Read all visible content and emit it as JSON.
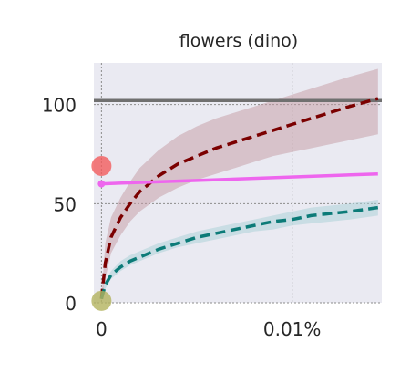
{
  "chart_data": {
    "type": "line",
    "title": "flowers (dino)",
    "xlabel": "",
    "ylabel": "",
    "x_ticks": [
      {
        "value": 0,
        "label": "0"
      },
      {
        "value": 0.01,
        "label": "0.01%"
      }
    ],
    "y_ticks": [
      {
        "value": 0,
        "label": "0"
      },
      {
        "value": 50,
        "label": "50"
      },
      {
        "value": 100,
        "label": "100"
      }
    ],
    "xlim": [
      -0.0004,
      0.0147
    ],
    "ylim": [
      0,
      121
    ],
    "grid": true,
    "colors": {
      "background": "#eaeaf2",
      "grid": "#8c8c8c",
      "reference": "#707070",
      "red": "#7b0000",
      "red_band": "#c49aa2",
      "teal": "#0c7b78",
      "teal_band": "#a8cfd6",
      "magenta": "#ee66ee",
      "red_point": "#f25c5c",
      "olive_point": "#b3b35e"
    },
    "reference_line": {
      "y": 102
    },
    "series": [
      {
        "color_key": "red",
        "style": "dashed",
        "x": [
          0,
          0.0002,
          0.0005,
          0.001,
          0.0015,
          0.002,
          0.003,
          0.004,
          0.005,
          0.006,
          0.007,
          0.008,
          0.009,
          0.01,
          0.011,
          0.012,
          0.013,
          0.0145
        ],
        "y": [
          2,
          20,
          33,
          43,
          50,
          56,
          64,
          70,
          74,
          78,
          81,
          84,
          87,
          90,
          93,
          96,
          99,
          103
        ],
        "band_low": [
          1,
          12,
          25,
          34,
          41,
          46,
          53,
          58,
          62,
          65,
          68,
          71,
          74,
          76,
          78,
          80,
          82,
          85
        ],
        "band_high": [
          3,
          30,
          43,
          53,
          61,
          68,
          77,
          84,
          89,
          93,
          96,
          99,
          102,
          105,
          108,
          111,
          114,
          118
        ]
      },
      {
        "color_key": "teal",
        "style": "dashed",
        "x": [
          0,
          0.0002,
          0.0005,
          0.001,
          0.0015,
          0.002,
          0.003,
          0.004,
          0.005,
          0.006,
          0.007,
          0.008,
          0.009,
          0.01,
          0.011,
          0.012,
          0.013,
          0.0145
        ],
        "y": [
          2,
          9,
          14,
          18,
          21,
          23,
          27,
          30,
          33,
          35,
          37,
          39,
          41,
          42,
          44,
          45,
          46,
          48
        ],
        "band_low": [
          1,
          7,
          12,
          16,
          19,
          21,
          25,
          28,
          30,
          32,
          34,
          36,
          37,
          39,
          40,
          41,
          42,
          44
        ],
        "band_high": [
          3,
          11,
          16,
          21,
          24,
          26,
          30,
          33,
          36,
          38,
          40,
          42,
          44,
          46,
          48,
          49,
          50,
          52
        ]
      },
      {
        "color_key": "magenta",
        "style": "solid",
        "x": [
          0,
          0.0145
        ],
        "y": [
          60,
          65
        ],
        "start_marker": true
      }
    ],
    "points": [
      {
        "x": 0,
        "y": 69,
        "color_key": "red_point"
      },
      {
        "x": 0,
        "y": 1,
        "color_key": "olive_point"
      }
    ]
  }
}
